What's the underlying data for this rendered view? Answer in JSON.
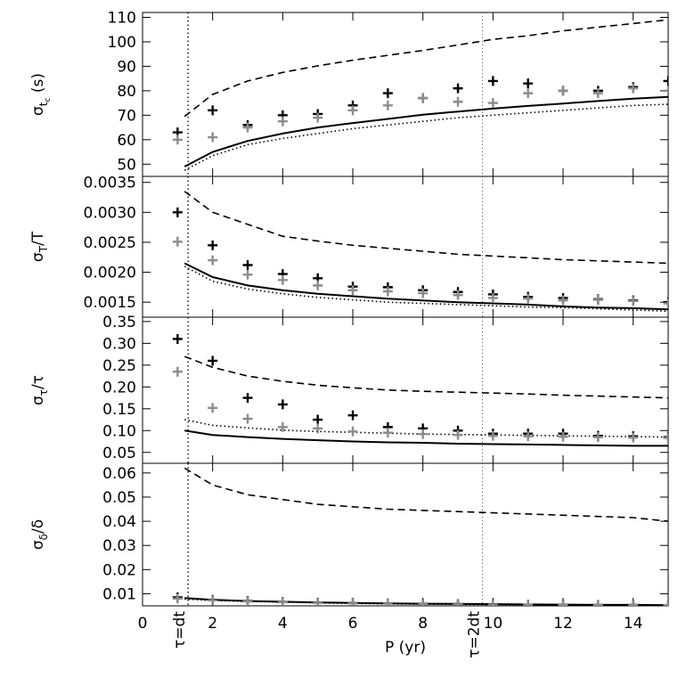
{
  "chart_data": {
    "type": "line",
    "shared_x": {
      "label": "P (yr)",
      "range": [
        0,
        15
      ],
      "ticks": [
        0,
        2,
        4,
        6,
        8,
        10,
        12,
        14
      ],
      "tick_labels": [
        "0",
        "2",
        "4",
        "6",
        "8",
        "10",
        "12",
        "14"
      ]
    },
    "annotations": [
      {
        "text": "τ=dt",
        "x": 1.3
      },
      {
        "text": "τ=2dt",
        "x": 9.7
      }
    ],
    "panels": [
      {
        "id": "sigma_t",
        "ylabel": "σ_t_c (s)",
        "ylabel_parts": {
          "sym": "σ",
          "sub": "t",
          "subsub": "c",
          "rest": " (s)"
        },
        "ylim": [
          45,
          112
        ],
        "yticks": [
          50,
          60,
          70,
          80,
          90,
          100,
          110
        ],
        "ytick_labels": [
          "50",
          "60",
          "70",
          "80",
          "90",
          "100",
          "110"
        ],
        "series": [
          {
            "style": "dashed",
            "x": [
              1.2,
              2,
              3,
              4,
              5,
              6,
              7,
              8,
              9,
              10,
              11,
              12,
              13,
              14,
              15
            ],
            "y": [
              69.5,
              78.5,
              84,
              87.5,
              90.2,
              92.5,
              94.5,
              96.5,
              98.7,
              101,
              102.5,
              104.5,
              106,
              107.5,
              109
            ]
          },
          {
            "style": "solid",
            "x": [
              1.2,
              2,
              3,
              4,
              5,
              6,
              7,
              8,
              9,
              10,
              11,
              12,
              13,
              14,
              15
            ],
            "y": [
              49,
              55,
              59.5,
              62.5,
              65,
              66.8,
              68.5,
              70.2,
              71.5,
              72.7,
              73.8,
              74.8,
              75.8,
              76.8,
              77.5
            ]
          },
          {
            "style": "dotted",
            "x": [
              1.2,
              2,
              3,
              4,
              5,
              6,
              7,
              8,
              9,
              10,
              11,
              12,
              13,
              14,
              15
            ],
            "y": [
              47.5,
              53.5,
              58,
              60.5,
              62.5,
              64.5,
              66,
              67.5,
              69,
              70,
              71,
              72,
              73,
              74,
              74.5
            ]
          },
          {
            "style": "plus-black",
            "x": [
              1,
              2,
              3,
              4,
              5,
              6,
              7,
              8,
              9,
              10,
              11,
              12,
              13,
              14,
              15
            ],
            "y": [
              63,
              72,
              66,
              70,
              70.5,
              74,
              79,
              77,
              81,
              84,
              83,
              80,
              80,
              81.5,
              84
            ]
          },
          {
            "style": "plus-gray",
            "x": [
              1,
              2,
              3,
              4,
              5,
              6,
              7,
              8,
              9,
              10,
              11,
              12,
              13,
              14,
              15
            ],
            "y": [
              60,
              61,
              65,
              67.5,
              69,
              72,
              74,
              77,
              75.5,
              75,
              79,
              80,
              79,
              81,
              80
            ]
          }
        ]
      },
      {
        "id": "sigma_T",
        "ylabel": "σ_T/T",
        "ylabel_parts": {
          "sym": "σ",
          "sub": "T",
          "subsub": "",
          "rest": "/T"
        },
        "ylim": [
          0.00125,
          0.0036
        ],
        "yticks": [
          0.0015,
          0.002,
          0.0025,
          0.003,
          0.0035
        ],
        "ytick_labels": [
          "0.0015",
          "0.0020",
          "0.0025",
          "0.0030",
          "0.0035"
        ],
        "series": [
          {
            "style": "dashed",
            "x": [
              1.2,
              2,
              3,
              4,
              5,
              6,
              7,
              8,
              9,
              10,
              11,
              12,
              13,
              14,
              15
            ],
            "y": [
              0.00335,
              0.003,
              0.0028,
              0.0026,
              0.00252,
              0.00245,
              0.0024,
              0.00235,
              0.0023,
              0.00227,
              0.00224,
              0.00221,
              0.00219,
              0.00217,
              0.00215
            ]
          },
          {
            "style": "solid",
            "x": [
              1.2,
              2,
              3,
              4,
              5,
              6,
              7,
              8,
              9,
              10,
              11,
              12,
              13,
              14,
              15
            ],
            "y": [
              0.00215,
              0.00192,
              0.00178,
              0.0017,
              0.00164,
              0.0016,
              0.00156,
              0.00153,
              0.0015,
              0.00148,
              0.00146,
              0.00143,
              0.00141,
              0.0014,
              0.00138
            ]
          },
          {
            "style": "dotted",
            "x": [
              1.2,
              2,
              3,
              4,
              5,
              6,
              7,
              8,
              9,
              10,
              11,
              12,
              13,
              14,
              15
            ],
            "y": [
              0.0021,
              0.00185,
              0.00172,
              0.00164,
              0.00158,
              0.00154,
              0.0015,
              0.00148,
              0.00146,
              0.00144,
              0.00142,
              0.00141,
              0.00139,
              0.00137,
              0.00135
            ]
          },
          {
            "style": "plus-black",
            "x": [
              1,
              2,
              3,
              4,
              5,
              6,
              7,
              8,
              9,
              10,
              11,
              12,
              13,
              14,
              15
            ],
            "y": [
              0.003,
              0.00245,
              0.00212,
              0.00197,
              0.0019,
              0.00176,
              0.00175,
              0.0017,
              0.00167,
              0.00163,
              0.00159,
              0.00157,
              0.00155,
              0.00153,
              0.0015
            ]
          },
          {
            "style": "plus-gray",
            "x": [
              1,
              2,
              3,
              4,
              5,
              6,
              7,
              8,
              9,
              10,
              11,
              12,
              13,
              14,
              15
            ],
            "y": [
              0.00251,
              0.0022,
              0.00196,
              0.00187,
              0.00178,
              0.0017,
              0.00168,
              0.00165,
              0.00162,
              0.00157,
              0.00156,
              0.00153,
              0.00154,
              0.00152,
              0.00148
            ]
          }
        ]
      },
      {
        "id": "sigma_tau",
        "ylabel": "σ_τ/τ",
        "ylabel_parts": {
          "sym": "σ",
          "sub": "τ",
          "subsub": "",
          "rest": "/τ"
        },
        "ylim": [
          0.025,
          0.36
        ],
        "yticks": [
          0.05,
          0.1,
          0.15,
          0.2,
          0.25,
          0.3,
          0.35
        ],
        "ytick_labels": [
          "0.05",
          "0.10",
          "0.15",
          "0.20",
          "0.25",
          "0.30",
          "0.35"
        ],
        "series": [
          {
            "style": "dashed",
            "x": [
              1.2,
              2,
              3,
              4,
              5,
              6,
              7,
              8,
              9,
              10,
              11,
              12,
              13,
              14,
              15
            ],
            "y": [
              0.27,
              0.245,
              0.225,
              0.213,
              0.204,
              0.198,
              0.193,
              0.19,
              0.188,
              0.186,
              0.184,
              0.181,
              0.179,
              0.177,
              0.175
            ]
          },
          {
            "style": "solid",
            "x": [
              1.2,
              2,
              3,
              4,
              5,
              6,
              7,
              8,
              9,
              10,
              11,
              12,
              13,
              14,
              15
            ],
            "y": [
              0.1,
              0.09,
              0.085,
              0.081,
              0.078,
              0.075,
              0.073,
              0.072,
              0.07,
              0.069,
              0.068,
              0.067,
              0.066,
              0.065,
              0.065
            ]
          },
          {
            "style": "dotted",
            "x": [
              1.2,
              2,
              3,
              4,
              5,
              6,
              7,
              8,
              9,
              10,
              11,
              12,
              13,
              14,
              15
            ],
            "y": [
              0.125,
              0.112,
              0.106,
              0.101,
              0.098,
              0.096,
              0.094,
              0.092,
              0.091,
              0.09,
              0.089,
              0.088,
              0.087,
              0.086,
              0.085
            ]
          },
          {
            "style": "plus-black",
            "x": [
              1,
              2,
              3,
              4,
              5,
              6,
              7,
              8,
              9,
              10,
              11,
              12,
              13,
              14,
              15
            ],
            "y": [
              0.31,
              0.26,
              0.175,
              0.16,
              0.125,
              0.135,
              0.108,
              0.105,
              0.1,
              0.093,
              0.093,
              0.093,
              0.088,
              0.087,
              0.085
            ]
          },
          {
            "style": "plus-gray",
            "x": [
              1,
              2,
              3,
              4,
              5,
              6,
              7,
              8,
              9,
              10,
              11,
              12,
              13,
              14,
              15
            ],
            "y": [
              0.235,
              0.152,
              0.127,
              0.108,
              0.105,
              0.098,
              0.095,
              0.092,
              0.09,
              0.088,
              0.087,
              0.086,
              0.085,
              0.084,
              0.083
            ]
          }
        ]
      },
      {
        "id": "sigma_delta",
        "ylabel": "σ_δ/δ",
        "ylabel_parts": {
          "sym": "σ",
          "sub": "δ",
          "subsub": "",
          "rest": "/δ"
        },
        "ylim": [
          0.005,
          0.064
        ],
        "yticks": [
          0.01,
          0.02,
          0.03,
          0.04,
          0.05,
          0.06
        ],
        "ytick_labels": [
          "0.01",
          "0.02",
          "0.03",
          "0.04",
          "0.05",
          "0.06"
        ],
        "series": [
          {
            "style": "dashed",
            "x": [
              1.2,
              2,
              3,
              4,
              5,
              6,
              7,
              8,
              9,
              10,
              11,
              12,
              13,
              14,
              15
            ],
            "y": [
              0.062,
              0.055,
              0.051,
              0.049,
              0.047,
              0.046,
              0.045,
              0.0445,
              0.044,
              0.0435,
              0.043,
              0.0425,
              0.042,
              0.0415,
              0.04
            ]
          },
          {
            "style": "solid",
            "x": [
              1.2,
              2,
              3,
              4,
              5,
              6,
              7,
              8,
              9,
              10,
              11,
              12,
              13,
              14,
              15
            ],
            "y": [
              0.0082,
              0.0075,
              0.007,
              0.0067,
              0.0064,
              0.0062,
              0.006,
              0.0059,
              0.0058,
              0.0057,
              0.0056,
              0.0055,
              0.0054,
              0.0054,
              0.0053
            ]
          },
          {
            "style": "dotted",
            "x": [
              1.2,
              2,
              3,
              4,
              5,
              6,
              7,
              8,
              9,
              10,
              11,
              12,
              13,
              14,
              15
            ],
            "y": [
              0.0078,
              0.0072,
              0.0068,
              0.0065,
              0.0062,
              0.006,
              0.0058,
              0.0057,
              0.0056,
              0.0055,
              0.0055,
              0.0054,
              0.0053,
              0.0053,
              0.0052
            ]
          },
          {
            "style": "plus-black",
            "x": [
              1,
              2,
              3,
              4,
              5,
              6,
              7,
              8,
              9,
              10,
              11,
              12,
              13,
              14,
              15
            ],
            "y": [
              0.0085,
              0.0075,
              0.007,
              0.0066,
              0.0063,
              0.0061,
              0.006,
              0.0058,
              0.0057,
              0.0056,
              0.0055,
              0.0055,
              0.0054,
              0.0054,
              0.0053
            ]
          },
          {
            "style": "plus-gray",
            "x": [
              1,
              2,
              3,
              4,
              5,
              6,
              7,
              8,
              9,
              10,
              11,
              12,
              13,
              14,
              15
            ],
            "y": [
              0.008,
              0.0073,
              0.0068,
              0.0065,
              0.0062,
              0.006,
              0.0059,
              0.0057,
              0.0056,
              0.0055,
              0.0055,
              0.0054,
              0.0054,
              0.0053,
              0.0053
            ]
          }
        ]
      }
    ]
  }
}
